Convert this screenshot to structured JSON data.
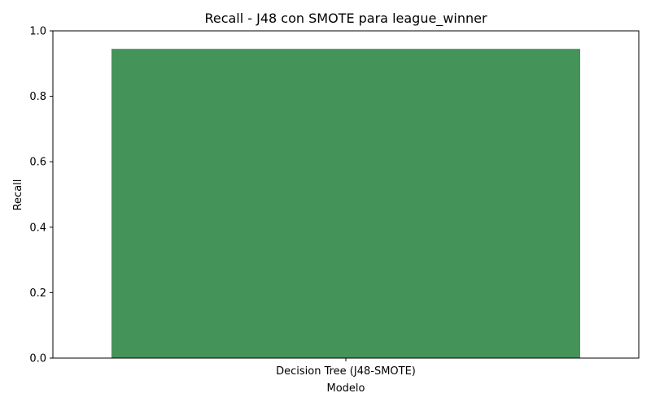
{
  "chart_data": {
    "type": "bar",
    "title": "Recall - J48 con SMOTE para league_winner",
    "xlabel": "Modelo",
    "ylabel": "Recall",
    "categories": [
      "Decision Tree (J48-SMOTE)"
    ],
    "values": [
      0.945
    ],
    "ylim": [
      0,
      1
    ],
    "yticks": [
      "0.0",
      "0.2",
      "0.4",
      "0.6",
      "0.8",
      "1.0"
    ],
    "grid": false,
    "bar_color": "#44945a"
  }
}
